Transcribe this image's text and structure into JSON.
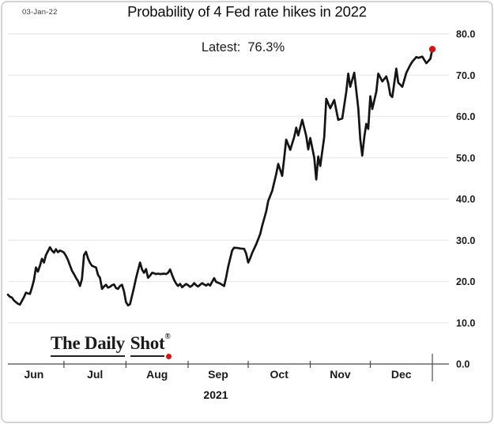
{
  "meta": {
    "date_label": "03-Jan-22"
  },
  "header": {
    "title": "Probability of 4 Fed rate hikes in 2022"
  },
  "annotation": {
    "latest_label": "Latest:",
    "latest_value": "76.3%"
  },
  "logo": {
    "part1": "The Daily",
    "part2": "Shot",
    "registered": "®"
  },
  "colors": {
    "line": "#141414",
    "marker": "#d61414",
    "grid": "#ececec",
    "axis": "#4a4a4a",
    "text": "#1a1a1a",
    "frame_border": "#d4d4d4",
    "background": "#ffffff"
  },
  "chart_data": {
    "type": "line",
    "title": "Probability of 4 Fed rate hikes in 2022",
    "xlabel": "2021",
    "ylabel": "",
    "annotation": "Latest:  76.3%",
    "latest_value": 76.3,
    "grid": "horizontal",
    "legend": "none",
    "y_axis": {
      "side": "right",
      "range": [
        0,
        80
      ],
      "ticks": [
        0,
        10,
        20,
        30,
        40,
        50,
        60,
        70,
        80
      ],
      "tick_labels": [
        "0.0",
        "10.0",
        "20.0",
        "30.0",
        "40.0",
        "50.0",
        "60.0",
        "70.0",
        "80.0"
      ]
    },
    "x_axis": {
      "unit": "days since 2021-06-01",
      "year_label": "2021",
      "months": [
        {
          "label": "Jun",
          "mid_day": 15
        },
        {
          "label": "Jul",
          "mid_day": 45.5
        },
        {
          "label": "Aug",
          "mid_day": 76.5
        },
        {
          "label": "Sep",
          "mid_day": 107
        },
        {
          "label": "Oct",
          "mid_day": 137.5
        },
        {
          "label": "Nov",
          "mid_day": 168
        },
        {
          "label": "Dec",
          "mid_day": 198.5
        }
      ],
      "boundary_tick_days": [
        30,
        61,
        92,
        122,
        153,
        183
      ],
      "end_tick_day": 214
    },
    "series": [
      {
        "name": "Probability of 4 Fed rate hikes in 2022 (%)",
        "marker_last_point": true,
        "points": [
          [
            2,
            16.8
          ],
          [
            3,
            16.3
          ],
          [
            4,
            16.1
          ],
          [
            5,
            15.4
          ],
          [
            6,
            15.0
          ],
          [
            7,
            14.6
          ],
          [
            8,
            14.4
          ],
          [
            9,
            15.3
          ],
          [
            10,
            16.2
          ],
          [
            11,
            17.3
          ],
          [
            12,
            17.1
          ],
          [
            13,
            17.0
          ],
          [
            14,
            18.5
          ],
          [
            15,
            20.3
          ],
          [
            16,
            23.4
          ],
          [
            17,
            22.4
          ],
          [
            18,
            23.8
          ],
          [
            19,
            25.5
          ],
          [
            20,
            24.6
          ],
          [
            21,
            26.4
          ],
          [
            23,
            28.3
          ],
          [
            24,
            27.5
          ],
          [
            25,
            27.0
          ],
          [
            26,
            27.8
          ],
          [
            27,
            27.1
          ],
          [
            28,
            27.5
          ],
          [
            29,
            27.3
          ],
          [
            30,
            27.0
          ],
          [
            31,
            26.2
          ],
          [
            32,
            25.2
          ],
          [
            33,
            23.9
          ],
          [
            34,
            22.6
          ],
          [
            35,
            21.8
          ],
          [
            36,
            20.9
          ],
          [
            37,
            20.1
          ],
          [
            38,
            18.9
          ],
          [
            39,
            20.6
          ],
          [
            40,
            26.4
          ],
          [
            41,
            27.2
          ],
          [
            42,
            25.6
          ],
          [
            43,
            24.5
          ],
          [
            44,
            23.8
          ],
          [
            45,
            23.6
          ],
          [
            46,
            23.4
          ],
          [
            47,
            21.6
          ],
          [
            48,
            20.9
          ],
          [
            49,
            18.2
          ],
          [
            50,
            18.8
          ],
          [
            51,
            19.2
          ],
          [
            52,
            18.5
          ],
          [
            53,
            18.7
          ],
          [
            54,
            19.1
          ],
          [
            55,
            19.3
          ],
          [
            56,
            18.4
          ],
          [
            57,
            18.2
          ],
          [
            58,
            18.9
          ],
          [
            59,
            19.2
          ],
          [
            60,
            17.6
          ],
          [
            61,
            15.0
          ],
          [
            62,
            14.2
          ],
          [
            63,
            14.5
          ],
          [
            64,
            16.5
          ],
          [
            65,
            18.6
          ],
          [
            66,
            20.8
          ],
          [
            67,
            22.7
          ],
          [
            68,
            24.6
          ],
          [
            69,
            22.9
          ],
          [
            70,
            22.1
          ],
          [
            71,
            23.0
          ],
          [
            72,
            20.9
          ],
          [
            73,
            21.4
          ],
          [
            74,
            22.1
          ],
          [
            75,
            22.0
          ],
          [
            76,
            21.8
          ],
          [
            77,
            21.9
          ],
          [
            78,
            21.8
          ],
          [
            80,
            21.9
          ],
          [
            81,
            21.8
          ],
          [
            82,
            22.1
          ],
          [
            83,
            22.9
          ],
          [
            84,
            21.6
          ],
          [
            85,
            20.4
          ],
          [
            86,
            19.5
          ],
          [
            87,
            18.9
          ],
          [
            88,
            19.4
          ],
          [
            89,
            18.6
          ],
          [
            90,
            19.0
          ],
          [
            91,
            19.4
          ],
          [
            92,
            19.1
          ],
          [
            93,
            18.7
          ],
          [
            94,
            19.0
          ],
          [
            95,
            19.6
          ],
          [
            96,
            19.1
          ],
          [
            97,
            18.8
          ],
          [
            98,
            19.2
          ],
          [
            99,
            19.6
          ],
          [
            100,
            19.3
          ],
          [
            101,
            19.0
          ],
          [
            102,
            19.4
          ],
          [
            103,
            19.0
          ],
          [
            105,
            20.8
          ],
          [
            106,
            19.9
          ],
          [
            108,
            19.5
          ],
          [
            110,
            18.9
          ],
          [
            111,
            21.0
          ],
          [
            112,
            23.5
          ],
          [
            114,
            27.5
          ],
          [
            115,
            28.2
          ],
          [
            117,
            28.1
          ],
          [
            118,
            28.0
          ],
          [
            120,
            27.9
          ],
          [
            121,
            26.8
          ],
          [
            122,
            24.6
          ],
          [
            123,
            25.6
          ],
          [
            124,
            26.9
          ],
          [
            126,
            29.0
          ],
          [
            128,
            31.5
          ],
          [
            129,
            33.5
          ],
          [
            131,
            37.0
          ],
          [
            132,
            39.5
          ],
          [
            134,
            42.0
          ],
          [
            136,
            46.0
          ],
          [
            137,
            48.5
          ],
          [
            139,
            45.6
          ],
          [
            140,
            50.0
          ],
          [
            141,
            54.4
          ],
          [
            143,
            51.9
          ],
          [
            145,
            55.0
          ],
          [
            146,
            57.3
          ],
          [
            147,
            55.4
          ],
          [
            149,
            59.2
          ],
          [
            151,
            55.3
          ],
          [
            152,
            52.0
          ],
          [
            153,
            54.8
          ],
          [
            155,
            50.0
          ],
          [
            156,
            44.7
          ],
          [
            157,
            50.3
          ],
          [
            158,
            48.0
          ],
          [
            160,
            55.0
          ],
          [
            161,
            64.3
          ],
          [
            163,
            62.0
          ],
          [
            165,
            64.0
          ],
          [
            167,
            59.2
          ],
          [
            169,
            59.5
          ],
          [
            171,
            66.0
          ],
          [
            172,
            70.4
          ],
          [
            173,
            67.2
          ],
          [
            175,
            70.6
          ],
          [
            177,
            62.0
          ],
          [
            178,
            54.5
          ],
          [
            179,
            50.5
          ],
          [
            180,
            55.0
          ],
          [
            181,
            58.2
          ],
          [
            182,
            57.0
          ],
          [
            183,
            64.9
          ],
          [
            184,
            61.8
          ],
          [
            186,
            66.0
          ],
          [
            187,
            70.4
          ],
          [
            189,
            68.5
          ],
          [
            191,
            69.7
          ],
          [
            192,
            68.0
          ],
          [
            193,
            65.2
          ],
          [
            194,
            64.7
          ],
          [
            196,
            71.6
          ],
          [
            197,
            68.2
          ],
          [
            199,
            67.2
          ],
          [
            201,
            70.6
          ],
          [
            203,
            72.5
          ],
          [
            204,
            73.3
          ],
          [
            206,
            74.4
          ],
          [
            207,
            74.2
          ],
          [
            209,
            74.5
          ],
          [
            211,
            72.9
          ],
          [
            213,
            74.0
          ],
          [
            214,
            76.3
          ]
        ]
      }
    ]
  }
}
